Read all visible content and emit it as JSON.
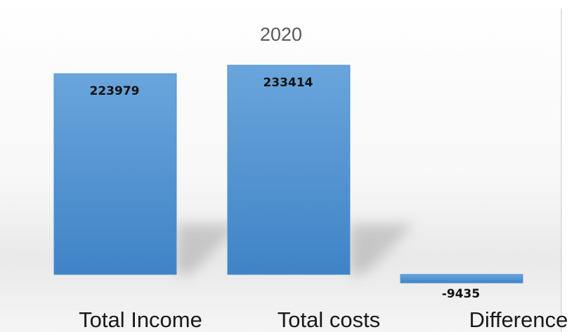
{
  "chart_data": {
    "type": "bar",
    "title": "2020",
    "categories": [
      "Total Income",
      "Total costs",
      "Difference"
    ],
    "values": [
      223979,
      233414,
      -9435
    ],
    "data_labels": [
      "223979",
      "233414",
      "-9435"
    ],
    "ylim": [
      -12000,
      245000
    ],
    "grid": false,
    "legend": "none",
    "colors": {
      "bar_top": "#6aa5dc",
      "bar_bottom": "#3f83c6",
      "bar_stroke": "#4e8fd0",
      "title": "#595959",
      "plot_border": "#d9d9d9"
    }
  }
}
